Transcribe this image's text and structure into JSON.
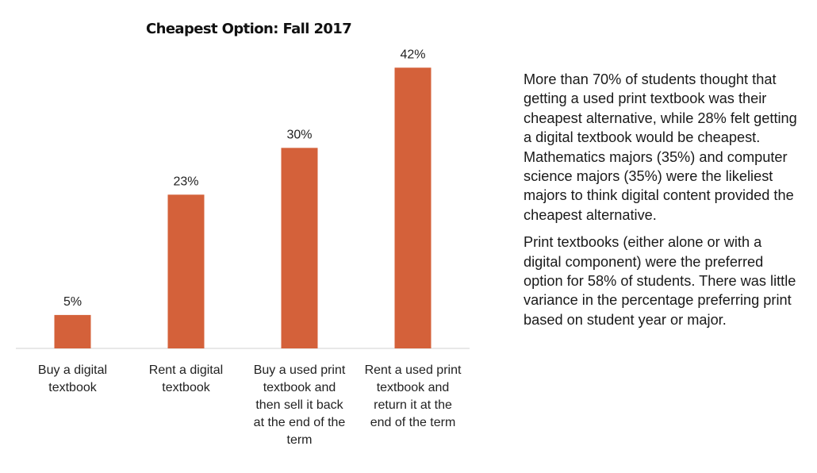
{
  "chart_data": {
    "type": "bar",
    "title": "Cheapest Option: Fall 2017",
    "categories": [
      [
        "Buy a digital",
        "textbook"
      ],
      [
        "Rent a digital",
        "textbook"
      ],
      [
        "Buy a used print",
        "textbook and",
        "then sell it back",
        "at the end of the",
        "term"
      ],
      [
        "Rent a used print",
        "textbook and",
        "return it at the",
        "end of the term"
      ]
    ],
    "values": [
      5,
      23,
      30,
      42
    ],
    "data_labels": [
      "5%",
      "23%",
      "30%",
      "42%"
    ],
    "ylim": [
      0,
      45
    ],
    "bar_color": "#d4613a",
    "grid": false,
    "legend": "none"
  },
  "text_panel": {
    "paragraphs": [
      "More than 70% of students thought that getting a used print textbook was their cheapest alternative, while 28% felt getting a digital textbook would be cheapest. Mathematics majors (35%) and computer science majors (35%) were the likeliest majors to think digital content provided the cheapest alternative.",
      "Print textbooks (either alone or with a digital component) were the preferred option for 58% of students. There was little variance in the percentage preferring print based on student year or major."
    ]
  }
}
